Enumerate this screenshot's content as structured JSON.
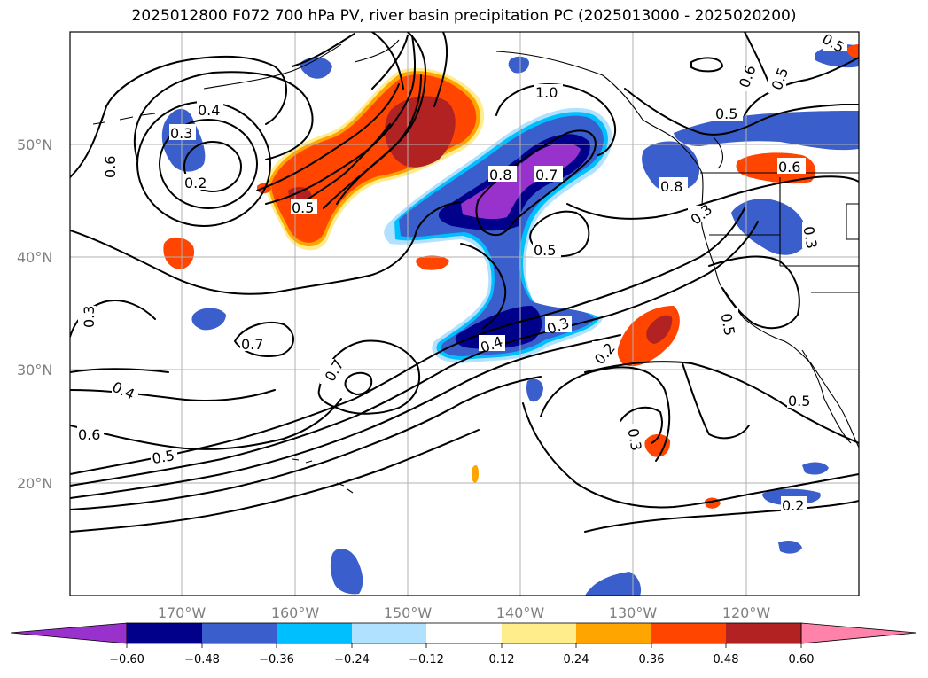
{
  "title": "2025012800 F072 700 hPa PV, river basin precipitation PC (2025013000 - 2025020200)",
  "axes": {
    "lat_ticks": [
      "20°N",
      "30°N",
      "40°N",
      "50°N"
    ],
    "lon_ticks": [
      "170°W",
      "160°W",
      "150°W",
      "140°W",
      "130°W",
      "120°W"
    ]
  },
  "colorbar": {
    "ticks": [
      "−0.60",
      "−0.48",
      "−0.36",
      "−0.24",
      "−0.12",
      "0.12",
      "0.24",
      "0.36",
      "0.48",
      "0.60"
    ],
    "colors": [
      "#9932cc",
      "#00008b",
      "#3a5fcd",
      "#00bfff",
      "#b0e2ff",
      "#ffffff",
      "#ffec8b",
      "#ffa500",
      "#ff4500",
      "#b22222",
      "#ff82ab"
    ],
    "extend": "both"
  },
  "contour_labels": [
    "0.4",
    "0.3",
    "0.2",
    "0.6",
    "0.5",
    "1.0",
    "0.8",
    "0.7",
    "0.5",
    "0.8",
    "0.6",
    "0.5",
    "0.5",
    "0.6",
    "0.5",
    "0.3",
    "0.5",
    "0.3",
    "0.7",
    "0.7",
    "0.4",
    "0.6",
    "0.5",
    "0.4",
    "0.3",
    "0.2",
    "0.3",
    "0.5",
    "0.3",
    "0.2"
  ]
}
